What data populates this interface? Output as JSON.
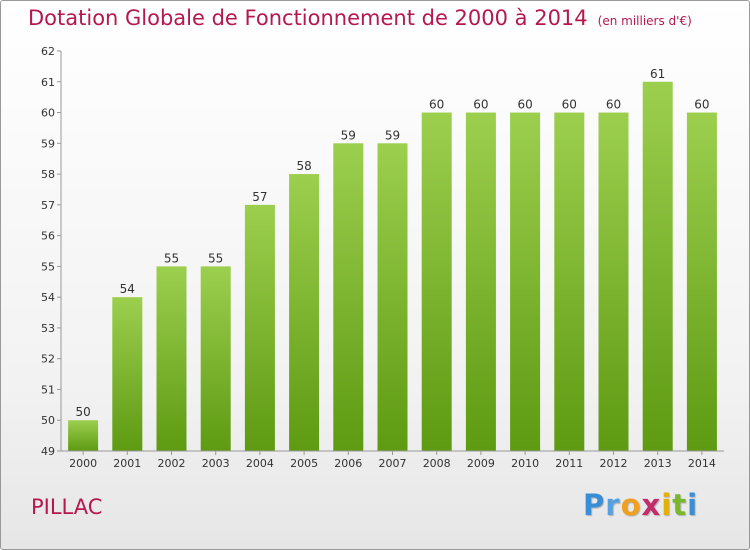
{
  "header": {
    "title": "Dotation Globale de Fonctionnement de 2000 à 2014",
    "subtitle": "(en milliers d'€)"
  },
  "footer": {
    "city": "PILLAC",
    "logo": [
      "P",
      "r",
      "o",
      "x",
      "i",
      "t",
      "i"
    ]
  },
  "chart_data": {
    "type": "bar",
    "categories": [
      "2000",
      "2001",
      "2002",
      "2003",
      "2004",
      "2005",
      "2006",
      "2007",
      "2008",
      "2009",
      "2010",
      "2011",
      "2012",
      "2013",
      "2014"
    ],
    "values": [
      50,
      54,
      55,
      55,
      57,
      58,
      59,
      59,
      60,
      60,
      60,
      60,
      60,
      61,
      60
    ],
    "title": "Dotation Globale de Fonctionnement de 2000 à 2014",
    "subtitle": "(en milliers d'€)",
    "ylim": [
      49,
      62
    ],
    "yticks": [
      49,
      50,
      51,
      52,
      53,
      54,
      55,
      56,
      57,
      58,
      59,
      60,
      61,
      62
    ],
    "grid": false,
    "data_labels": true,
    "bar_color_top": "#9ccf4e",
    "bar_color_bottom": "#5e9a12",
    "title_color": "#b5184f"
  }
}
